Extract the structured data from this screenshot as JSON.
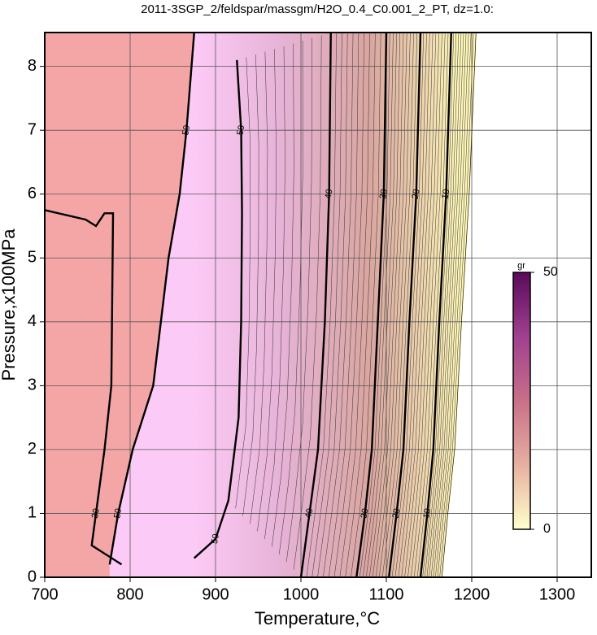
{
  "chart_data": {
    "type": "contour",
    "title": "2011-3SGP_2/feldspar/massgm/H2O_0.4_C0.001_2_PT, dz=1.0:",
    "x_label": "Temperature,°C",
    "y_label": "Pressure,x100MPa",
    "xlim": [
      700,
      1340
    ],
    "ylim": [
      0,
      8.53
    ],
    "xticks": [
      700,
      800,
      900,
      1000,
      1100,
      1200,
      1300
    ],
    "yticks": [
      0,
      1,
      2,
      3,
      4,
      5,
      6,
      7,
      8
    ],
    "grid": true,
    "outside_color": "#f4a6a6",
    "field_colors": [
      "#fdf6b8",
      "#d9a6a0",
      "#e6b2d6",
      "#fccaf6"
    ],
    "contours": [
      {
        "level": 50,
        "x": [
          776,
          786,
          803,
          827,
          845,
          858,
          866,
          875
        ],
        "y": [
          0.2,
          1,
          2,
          3,
          5,
          6,
          7,
          8.53
        ]
      },
      {
        "level": 50,
        "x": [
          875,
          900,
          915,
          927,
          930,
          931,
          930,
          925
        ],
        "y": [
          0.3,
          0.6,
          1.2,
          2.5,
          4,
          5.7,
          7,
          8.1
        ]
      },
      {
        "level": 40,
        "x": [
          1000,
          1010,
          1020,
          1028,
          1033,
          1035
        ],
        "y": [
          0,
          1,
          2,
          4,
          6,
          8.53
        ]
      },
      {
        "level": 30,
        "x": [
          1065,
          1075,
          1083,
          1090,
          1097,
          1100
        ],
        "y": [
          0,
          1,
          2,
          4,
          6,
          8.53
        ]
      },
      {
        "level": 20,
        "x": [
          1103,
          1112,
          1120,
          1127,
          1135,
          1140
        ],
        "y": [
          0,
          1,
          2,
          4,
          6,
          8.53
        ]
      },
      {
        "level": 10,
        "x": [
          1140,
          1148,
          1155,
          1162,
          1170,
          1176
        ],
        "y": [
          0,
          1,
          2,
          4,
          6,
          8.53
        ]
      },
      {
        "level": 0,
        "x": [
          1165,
          1172,
          1180,
          1188,
          1197,
          1205
        ],
        "y": [
          0,
          1,
          2,
          4,
          6,
          8.53
        ]
      },
      {
        "level": 30,
        "x": [
          700,
          748,
          760,
          770,
          780,
          778,
          770,
          760,
          755,
          790
        ],
        "y": [
          5.75,
          5.6,
          5.5,
          5.7,
          5.7,
          3,
          2,
          1,
          0.5,
          0.2
        ]
      }
    ],
    "colorbar": {
      "label": "gr",
      "lim": [
        0,
        50
      ],
      "ticks": [
        0,
        50
      ],
      "colormap": [
        "#ffffcc",
        "#e6b0a0",
        "#c87088",
        "#a04090",
        "#5a0a5a"
      ]
    }
  }
}
